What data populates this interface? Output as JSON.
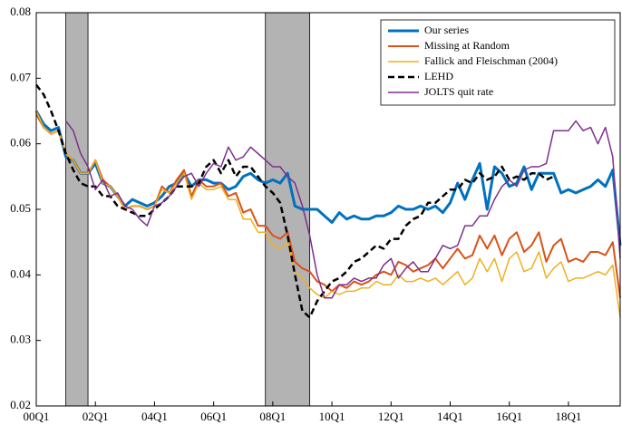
{
  "chart_data": {
    "type": "line",
    "categories": [
      "00Q1",
      null,
      null,
      null,
      null,
      null,
      null,
      null,
      "02Q1",
      null,
      null,
      null,
      null,
      null,
      null,
      null,
      "04Q1",
      null,
      null,
      null,
      null,
      null,
      null,
      null,
      "06Q1",
      null,
      null,
      null,
      null,
      null,
      null,
      null,
      "08Q1",
      null,
      null,
      null,
      null,
      null,
      null,
      null,
      "10Q1",
      null,
      null,
      null,
      null,
      null,
      null,
      null,
      "12Q1",
      null,
      null,
      null,
      null,
      null,
      null,
      null,
      "14Q1",
      null,
      null,
      null,
      null,
      null,
      null,
      null,
      "16Q1",
      null,
      null,
      null,
      null,
      null,
      null,
      null,
      "18Q1",
      null,
      null,
      null,
      null,
      null,
      null,
      null
    ],
    "ylim": [
      0.02,
      0.08
    ],
    "yticks": [
      0.02,
      0.03,
      0.04,
      0.05,
      0.06,
      0.07,
      0.08
    ],
    "shaded_periods": [
      [
        4,
        7
      ],
      [
        31,
        37
      ]
    ],
    "shade_color": "#b3b3b3",
    "legend": "upper right",
    "series": [
      {
        "name": "Our series",
        "color": "#0072bd",
        "width": 3,
        "dash": false,
        "values": [
          0.065,
          0.063,
          0.062,
          0.0625,
          0.058,
          0.0575,
          0.0555,
          0.0555,
          0.057,
          0.054,
          0.0535,
          0.052,
          0.0505,
          0.0515,
          0.051,
          0.0505,
          0.051,
          0.052,
          0.0535,
          0.054,
          0.0555,
          0.0535,
          0.0545,
          0.0545,
          0.054,
          0.054,
          0.053,
          0.0535,
          0.055,
          0.0555,
          0.0545,
          0.054,
          0.0545,
          0.054,
          0.0555,
          0.0505,
          0.05,
          0.05,
          0.05,
          0.049,
          0.048,
          0.0495,
          0.0485,
          0.049,
          0.0485,
          0.0485,
          0.049,
          0.049,
          0.0495,
          0.0505,
          0.05,
          0.05,
          0.0505,
          0.05,
          0.0505,
          0.0495,
          0.051,
          0.054,
          0.0515,
          0.0545,
          0.057,
          0.05,
          0.0565,
          0.0555,
          0.0535,
          0.054,
          0.0565,
          0.053,
          0.0555,
          0.0555,
          0.0555,
          0.0525,
          0.053,
          0.0525,
          0.053,
          0.0535,
          0.0545,
          0.0535,
          0.056,
          0.0445
        ]
      },
      {
        "name": "Missing at Random",
        "color": "#d95319",
        "width": 2,
        "dash": false,
        "values": [
          0.0645,
          0.0625,
          0.0615,
          0.062,
          0.0585,
          0.0575,
          0.0555,
          0.0555,
          0.0575,
          0.0545,
          0.0535,
          0.052,
          0.05,
          0.0505,
          0.0505,
          0.05,
          0.0505,
          0.0535,
          0.0525,
          0.0545,
          0.056,
          0.052,
          0.0545,
          0.0535,
          0.0535,
          0.054,
          0.052,
          0.0525,
          0.0495,
          0.05,
          0.0475,
          0.0475,
          0.046,
          0.0455,
          0.0465,
          0.042,
          0.041,
          0.0405,
          0.039,
          0.0385,
          0.0375,
          0.0385,
          0.038,
          0.039,
          0.0385,
          0.039,
          0.04,
          0.0405,
          0.04,
          0.042,
          0.0415,
          0.0405,
          0.041,
          0.0415,
          0.0425,
          0.041,
          0.0425,
          0.044,
          0.0425,
          0.043,
          0.046,
          0.044,
          0.046,
          0.043,
          0.0455,
          0.0465,
          0.0435,
          0.0445,
          0.0465,
          0.042,
          0.0445,
          0.0455,
          0.042,
          0.0425,
          0.042,
          0.0435,
          0.0435,
          0.043,
          0.045,
          0.0365
        ]
      },
      {
        "name": "Fallick and Fleischman (2004)",
        "color": "#edb120",
        "width": 1.5,
        "dash": false,
        "values": [
          0.065,
          0.0625,
          0.0615,
          0.062,
          0.0585,
          0.0575,
          0.0555,
          0.0555,
          0.0575,
          0.054,
          0.0535,
          0.052,
          0.05,
          0.0505,
          0.0505,
          0.05,
          0.0505,
          0.053,
          0.0525,
          0.054,
          0.0555,
          0.0515,
          0.054,
          0.053,
          0.053,
          0.0535,
          0.0515,
          0.0515,
          0.0485,
          0.0485,
          0.0465,
          0.0465,
          0.0445,
          0.044,
          0.045,
          0.0405,
          0.0395,
          0.038,
          0.037,
          0.0365,
          0.0375,
          0.037,
          0.0375,
          0.0375,
          0.038,
          0.038,
          0.039,
          0.0385,
          0.0385,
          0.04,
          0.039,
          0.039,
          0.0395,
          0.039,
          0.0395,
          0.0385,
          0.0395,
          0.0405,
          0.0385,
          0.0395,
          0.0425,
          0.0405,
          0.0425,
          0.039,
          0.0425,
          0.0435,
          0.0405,
          0.041,
          0.0435,
          0.0395,
          0.041,
          0.042,
          0.039,
          0.0395,
          0.0395,
          0.04,
          0.0405,
          0.04,
          0.0415,
          0.0335
        ]
      },
      {
        "name": "LEHD",
        "color": "#000000",
        "width": 2.5,
        "dash": true,
        "values": [
          0.069,
          0.0675,
          0.065,
          0.062,
          0.0585,
          0.056,
          0.054,
          0.0535,
          0.0535,
          0.052,
          0.052,
          0.0505,
          0.05,
          0.0495,
          0.049,
          0.049,
          0.05,
          0.051,
          0.052,
          0.0535,
          0.0535,
          0.0535,
          0.054,
          0.0565,
          0.0575,
          0.0555,
          0.0575,
          0.055,
          0.0565,
          0.0565,
          0.055,
          0.0535,
          0.0525,
          0.051,
          0.046,
          0.04,
          0.0345,
          0.0335,
          0.036,
          0.0375,
          0.039,
          0.0395,
          0.0405,
          0.042,
          0.0425,
          0.0435,
          0.0445,
          0.044,
          0.0455,
          0.0455,
          0.0475,
          0.0485,
          0.049,
          0.051,
          0.051,
          0.052,
          0.053,
          0.053,
          0.0545,
          0.054,
          0.0555,
          0.0545,
          0.055,
          0.0565,
          0.0545,
          0.055,
          0.0545,
          0.0555,
          0.0555,
          0.0545,
          0.055,
          null,
          null,
          null,
          null,
          null,
          null,
          null,
          null,
          null
        ]
      },
      {
        "name": "JOLTS quit rate",
        "color": "#7e2f8e",
        "width": 1.5,
        "dash": false,
        "values": [
          null,
          null,
          null,
          null,
          0.0635,
          0.062,
          0.0585,
          0.0565,
          0.053,
          0.0545,
          0.052,
          0.0525,
          0.0505,
          0.05,
          0.0485,
          0.0475,
          0.0505,
          0.051,
          0.052,
          0.0535,
          0.055,
          0.0555,
          0.0535,
          0.0555,
          0.057,
          0.0565,
          0.0595,
          0.0575,
          0.058,
          0.0595,
          0.0585,
          0.0575,
          0.0565,
          0.0565,
          0.055,
          0.054,
          0.0505,
          0.046,
          0.04,
          0.0365,
          0.0365,
          0.0385,
          0.0385,
          0.0395,
          0.039,
          0.0395,
          0.0395,
          0.0415,
          0.0425,
          0.0395,
          0.041,
          0.042,
          0.0405,
          0.0405,
          0.0425,
          0.0445,
          0.044,
          0.0445,
          0.0475,
          0.0475,
          0.049,
          0.049,
          0.0515,
          0.0535,
          0.0545,
          0.0535,
          0.056,
          0.0565,
          0.0565,
          0.057,
          0.062,
          0.062,
          0.062,
          0.0635,
          0.062,
          0.0625,
          0.06,
          0.0625,
          0.058,
          0.0425
        ]
      }
    ]
  }
}
